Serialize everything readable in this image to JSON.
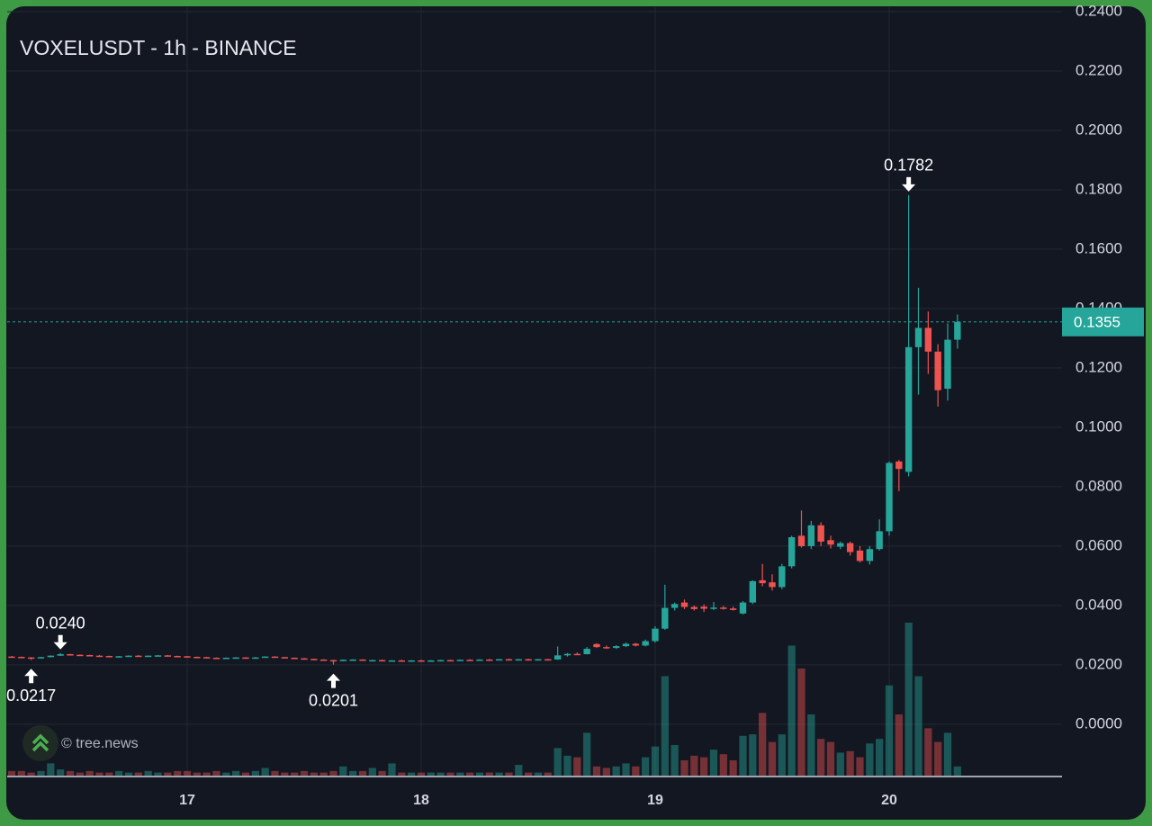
{
  "chart_data": {
    "type": "candlestick",
    "title": "VOXELUSDT - 1h - BINANCE",
    "watermark": "© tree.news",
    "up_color": "#26a69a",
    "down_color": "#ef5350",
    "grid": true,
    "x": [
      16.25,
      16.2917,
      16.3333,
      16.375,
      16.4167,
      16.4583,
      16.5,
      16.5417,
      16.5833,
      16.625,
      16.6667,
      16.7083,
      16.75,
      16.7917,
      16.8333,
      16.875,
      16.9167,
      16.9583,
      17,
      17.0417,
      17.0833,
      17.125,
      17.1667,
      17.2083,
      17.25,
      17.2917,
      17.3333,
      17.375,
      17.4167,
      17.4583,
      17.5,
      17.5417,
      17.5833,
      17.625,
      17.6667,
      17.7083,
      17.75,
      17.7917,
      17.8333,
      17.875,
      17.9167,
      17.9583,
      18,
      18.0417,
      18.0833,
      18.125,
      18.1667,
      18.2083,
      18.25,
      18.2917,
      18.3333,
      18.375,
      18.4167,
      18.4583,
      18.5,
      18.5417,
      18.5833,
      18.625,
      18.6667,
      18.7083,
      18.75,
      18.7917,
      18.8333,
      18.875,
      18.9167,
      18.9583,
      19,
      19.0417,
      19.0833,
      19.125,
      19.1667,
      19.2083,
      19.25,
      19.2917,
      19.3333,
      19.375,
      19.4167,
      19.4583,
      19.5,
      19.5417,
      19.5833,
      19.625,
      19.6667,
      19.7083,
      19.75,
      19.7917,
      19.8333,
      19.875,
      19.9167,
      19.9583,
      20,
      20.0417,
      20.0833,
      20.125,
      20.1667,
      20.2083,
      20.25,
      20.2917
    ],
    "open": [
      0.0228,
      0.0227,
      0.0225,
      0.0224,
      0.0226,
      0.0231,
      0.0236,
      0.0234,
      0.0233,
      0.0231,
      0.023,
      0.0228,
      0.0229,
      0.0231,
      0.023,
      0.0231,
      0.0232,
      0.023,
      0.0229,
      0.0227,
      0.0226,
      0.0224,
      0.0223,
      0.0224,
      0.0225,
      0.0223,
      0.0225,
      0.0228,
      0.0226,
      0.0224,
      0.0222,
      0.022,
      0.0218,
      0.0216,
      0.0214,
      0.0217,
      0.0218,
      0.0215,
      0.0216,
      0.0214,
      0.0215,
      0.0214,
      0.0215,
      0.0214,
      0.0215,
      0.0216,
      0.0215,
      0.0217,
      0.0216,
      0.0218,
      0.0217,
      0.0219,
      0.0218,
      0.0219,
      0.0218,
      0.0219,
      0.0218,
      0.0232,
      0.0237,
      0.0236,
      0.027,
      0.026,
      0.0257,
      0.0263,
      0.0271,
      0.0265,
      0.028,
      0.0322,
      0.0392,
      0.041,
      0.0395,
      0.0396,
      0.0389,
      0.0393,
      0.039,
      0.0373,
      0.041,
      0.0485,
      0.0478,
      0.0462,
      0.0532,
      0.0635,
      0.06,
      0.067,
      0.062,
      0.0598,
      0.061,
      0.0585,
      0.055,
      0.059,
      0.065,
      0.0885,
      0.085,
      0.127,
      0.1335,
      0.1255,
      0.113,
      0.1295
    ],
    "high": [
      0.023,
      0.0228,
      0.0226,
      0.0227,
      0.0232,
      0.024,
      0.0237,
      0.0235,
      0.0234,
      0.0233,
      0.0231,
      0.023,
      0.0232,
      0.0233,
      0.0232,
      0.0233,
      0.0233,
      0.0231,
      0.023,
      0.0228,
      0.0227,
      0.0225,
      0.0225,
      0.0226,
      0.0226,
      0.0226,
      0.0229,
      0.0229,
      0.0227,
      0.0225,
      0.0223,
      0.0221,
      0.0219,
      0.0217,
      0.0218,
      0.0219,
      0.0219,
      0.0217,
      0.0218,
      0.0216,
      0.0217,
      0.0216,
      0.0217,
      0.0216,
      0.0217,
      0.0217,
      0.0218,
      0.0219,
      0.0219,
      0.022,
      0.022,
      0.0221,
      0.022,
      0.0221,
      0.022,
      0.022,
      0.0262,
      0.024,
      0.0242,
      0.026,
      0.0273,
      0.0265,
      0.0266,
      0.0275,
      0.0274,
      0.0285,
      0.033,
      0.047,
      0.041,
      0.042,
      0.04,
      0.0404,
      0.0412,
      0.0398,
      0.0396,
      0.0415,
      0.0485,
      0.054,
      0.0505,
      0.054,
      0.0635,
      0.072,
      0.0685,
      0.068,
      0.0635,
      0.0615,
      0.0615,
      0.06,
      0.06,
      0.069,
      0.0885,
      0.089,
      0.1782,
      0.147,
      0.139,
      0.128,
      0.135,
      0.138
    ],
    "low": [
      0.0226,
      0.0224,
      0.0217,
      0.0223,
      0.0225,
      0.023,
      0.0233,
      0.0232,
      0.023,
      0.0229,
      0.0227,
      0.0226,
      0.0228,
      0.0229,
      0.0228,
      0.0229,
      0.0229,
      0.0228,
      0.0226,
      0.0225,
      0.0223,
      0.0222,
      0.0221,
      0.0222,
      0.0222,
      0.0222,
      0.0224,
      0.0225,
      0.0223,
      0.0221,
      0.0219,
      0.0217,
      0.0215,
      0.0201,
      0.0213,
      0.0215,
      0.0214,
      0.0213,
      0.0213,
      0.0212,
      0.0213,
      0.0212,
      0.0213,
      0.0212,
      0.0213,
      0.0214,
      0.0214,
      0.0215,
      0.0215,
      0.0216,
      0.0216,
      0.0217,
      0.0216,
      0.0217,
      0.0216,
      0.0217,
      0.0217,
      0.0228,
      0.0233,
      0.0235,
      0.0257,
      0.0254,
      0.0254,
      0.026,
      0.0262,
      0.0262,
      0.0275,
      0.0318,
      0.0383,
      0.0388,
      0.0383,
      0.0378,
      0.0385,
      0.0386,
      0.0383,
      0.037,
      0.0405,
      0.0465,
      0.045,
      0.0455,
      0.0525,
      0.0595,
      0.059,
      0.06,
      0.0592,
      0.059,
      0.0568,
      0.0545,
      0.0538,
      0.0585,
      0.0635,
      0.0785,
      0.0835,
      0.111,
      0.118,
      0.107,
      0.109,
      0.1265
    ],
    "close": [
      0.0227,
      0.0225,
      0.0224,
      0.0226,
      0.0231,
      0.0236,
      0.0234,
      0.0233,
      0.0231,
      0.023,
      0.0228,
      0.0229,
      0.0231,
      0.023,
      0.0231,
      0.0232,
      0.023,
      0.0229,
      0.0227,
      0.0226,
      0.0224,
      0.0223,
      0.0224,
      0.0225,
      0.0223,
      0.0225,
      0.0228,
      0.0226,
      0.0224,
      0.0222,
      0.022,
      0.0218,
      0.0216,
      0.0214,
      0.0217,
      0.0218,
      0.0215,
      0.0216,
      0.0214,
      0.0215,
      0.0214,
      0.0215,
      0.0214,
      0.0215,
      0.0216,
      0.0215,
      0.0217,
      0.0216,
      0.0218,
      0.0217,
      0.0219,
      0.0218,
      0.0219,
      0.0218,
      0.0219,
      0.0218,
      0.0232,
      0.0237,
      0.0236,
      0.0254,
      0.026,
      0.0257,
      0.0263,
      0.0271,
      0.0265,
      0.028,
      0.0322,
      0.0392,
      0.0405,
      0.0395,
      0.0388,
      0.0389,
      0.0393,
      0.039,
      0.0385,
      0.041,
      0.0482,
      0.0475,
      0.0462,
      0.0532,
      0.063,
      0.06,
      0.067,
      0.0615,
      0.0605,
      0.061,
      0.058,
      0.055,
      0.059,
      0.065,
      0.088,
      0.086,
      0.127,
      0.1335,
      0.1255,
      0.1125,
      0.1295,
      0.1355
    ],
    "volume": [
      3,
      3,
      2,
      3,
      8,
      4,
      3,
      2,
      3,
      2,
      2,
      3,
      2,
      2,
      3,
      2,
      2,
      3,
      3,
      2,
      2,
      3,
      2,
      3,
      2,
      3,
      5,
      3,
      2,
      2,
      3,
      2,
      2,
      3,
      6,
      3,
      3,
      5,
      3,
      8,
      2,
      2,
      2,
      2,
      2,
      2,
      2,
      2,
      2,
      2,
      2,
      2,
      7,
      2,
      2,
      2,
      18,
      13,
      12,
      28,
      6,
      5,
      6,
      8,
      6,
      12,
      19,
      65,
      20,
      10,
      13,
      12,
      17,
      14,
      10,
      26,
      27,
      41,
      22,
      27,
      85,
      70,
      40,
      24,
      22,
      15,
      16,
      12,
      21,
      24,
      59,
      40,
      100,
      65,
      31,
      22,
      28,
      6
    ],
    "xlim": [
      16.2308,
      20.7385
    ],
    "xticks": [
      17,
      18,
      19,
      20
    ],
    "ylim": [
      -0.0173,
      0.2415
    ],
    "yticks": [
      {
        "value": 0,
        "label": "0.0000"
      },
      {
        "value": 0.02,
        "label": "0.0200"
      },
      {
        "value": 0.04,
        "label": "0.0400"
      },
      {
        "value": 0.06,
        "label": "0.0600"
      },
      {
        "value": 0.08,
        "label": "0.0800"
      },
      {
        "value": 0.1,
        "label": "0.1000"
      },
      {
        "value": 0.12,
        "label": "0.1200"
      },
      {
        "value": 0.14,
        "label": "0.1400"
      },
      {
        "value": 0.16,
        "label": "0.1600"
      },
      {
        "value": 0.18,
        "label": "0.1800"
      },
      {
        "value": 0.2,
        "label": "0.2000"
      },
      {
        "value": 0.22,
        "label": "0.2200"
      },
      {
        "value": 0.24,
        "label": "0.2400"
      }
    ],
    "last_price": {
      "value": 0.1355,
      "label": "0.1355"
    },
    "annotations": [
      {
        "value": 0.1782,
        "label": "0.1782",
        "x": 20.0833,
        "position": "above"
      },
      {
        "value": 0.024,
        "label": "0.0240",
        "x": 16.4583,
        "position": "above"
      },
      {
        "value": 0.0217,
        "label": "0.0217",
        "x": 16.3333,
        "position": "below"
      },
      {
        "value": 0.0201,
        "label": "0.0201",
        "x": 17.625,
        "position": "below"
      }
    ]
  }
}
